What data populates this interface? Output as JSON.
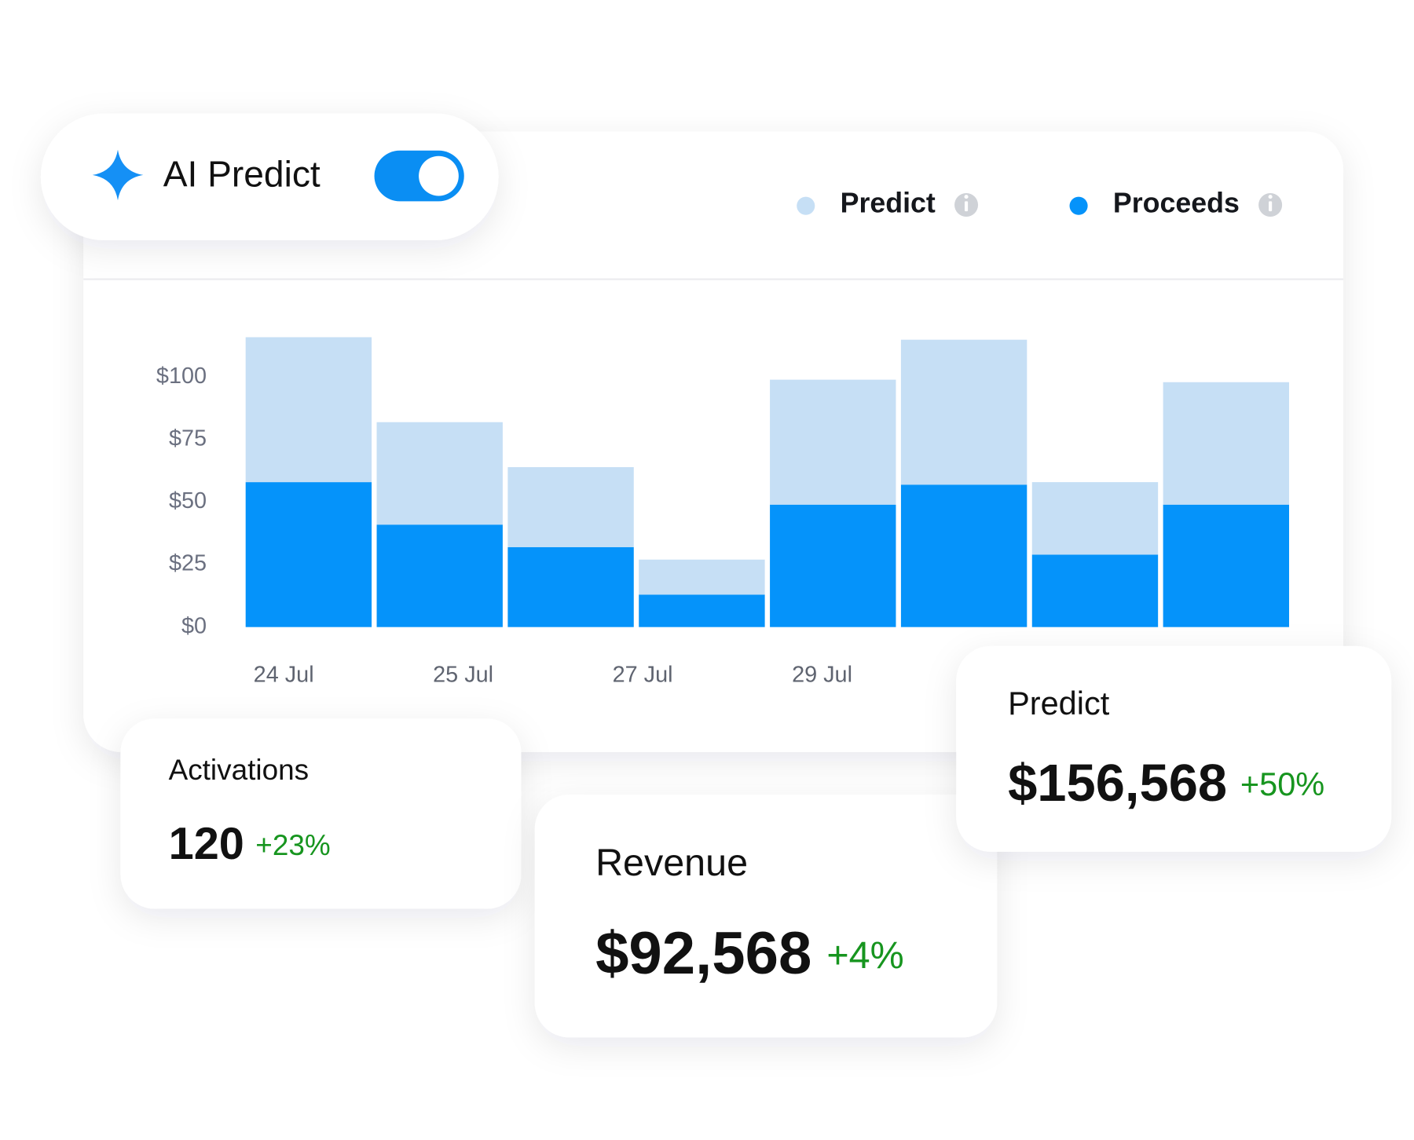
{
  "toggle": {
    "label": "AI Predict",
    "on": true
  },
  "chart_data": {
    "type": "bar",
    "stacked": true,
    "categories": [
      null,
      null,
      null,
      null,
      null,
      null,
      null,
      null
    ],
    "xlabels": [
      "24 Jul",
      "25 Jul",
      "27 Jul",
      "29 Jul"
    ],
    "series": [
      {
        "name": "Predict",
        "color": "#c6dff5",
        "values": [
          58,
          41,
          32,
          14,
          50,
          58,
          29,
          49
        ]
      },
      {
        "name": "Proceeds",
        "color": "#0593fa",
        "values": [
          58,
          41,
          32,
          13,
          49,
          57,
          29,
          49
        ]
      }
    ],
    "ylim": [
      0,
      120
    ],
    "yticks": [
      {
        "value": 0,
        "label": "$0"
      },
      {
        "value": 25,
        "label": "$25"
      },
      {
        "value": 50,
        "label": "$50"
      },
      {
        "value": 75,
        "label": "$75"
      },
      {
        "value": 100,
        "label": "$100"
      }
    ],
    "grid": false
  },
  "cards": [
    {
      "title": "Activations",
      "value": "120",
      "change": "+23%"
    },
    {
      "title": "Revenue",
      "value": "$92,568",
      "change": "+4%"
    },
    {
      "title": "Predict",
      "value": "$156,568",
      "change": "+50%"
    }
  ]
}
